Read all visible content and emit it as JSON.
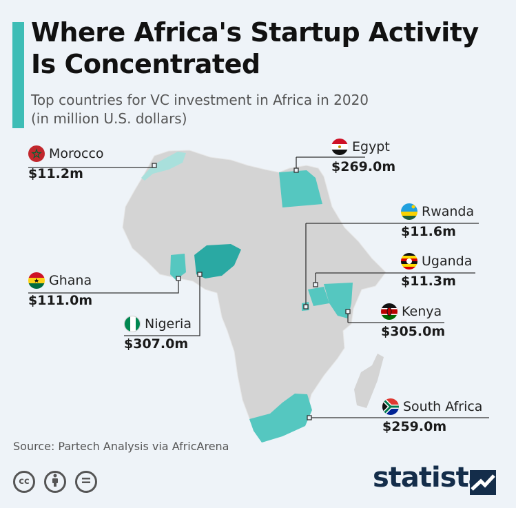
{
  "header": {
    "title_line1": "Where Africa's Startup Activity",
    "title_line2": "Is Concentrated",
    "subtitle_line1": "Top countries for VC investment in Africa in 2020",
    "subtitle_line2": "(in million U.S. dollars)"
  },
  "countries": [
    {
      "name": "Morocco",
      "value": "$11.2m",
      "amount_musd": 11.2,
      "flag_icon": "morocco-flag-icon"
    },
    {
      "name": "Egypt",
      "value": "$269.0m",
      "amount_musd": 269.0,
      "flag_icon": "egypt-flag-icon"
    },
    {
      "name": "Rwanda",
      "value": "$11.6m",
      "amount_musd": 11.6,
      "flag_icon": "rwanda-flag-icon"
    },
    {
      "name": "Uganda",
      "value": "$11.3m",
      "amount_musd": 11.3,
      "flag_icon": "uganda-flag-icon"
    },
    {
      "name": "Ghana",
      "value": "$111.0m",
      "amount_musd": 111.0,
      "flag_icon": "ghana-flag-icon"
    },
    {
      "name": "Kenya",
      "value": "$305.0m",
      "amount_musd": 305.0,
      "flag_icon": "kenya-flag-icon"
    },
    {
      "name": "Nigeria",
      "value": "$307.0m",
      "amount_musd": 307.0,
      "flag_icon": "nigeria-flag-icon"
    },
    {
      "name": "South Africa",
      "value": "$259.0m",
      "amount_musd": 259.0,
      "flag_icon": "south-africa-flag-icon"
    }
  ],
  "colors": {
    "accent": "#3ebdb6",
    "map_base": "#d4d4d4",
    "highlight_high": "#2aa9a3",
    "highlight_mid": "#55c7c0",
    "highlight_low": "#a9e0dc"
  },
  "footer": {
    "source": "Source: Partech Analysis via AfricArena",
    "brand": "statista",
    "cc_icons": [
      "cc-icon",
      "attribution-icon",
      "no-derivatives-icon"
    ]
  }
}
